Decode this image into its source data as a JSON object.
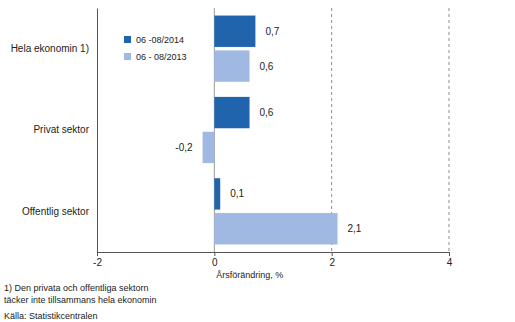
{
  "chart_data": {
    "type": "bar",
    "orientation": "horizontal",
    "categories": [
      "Hela ekonomin 1)",
      "Privat sektor",
      "Offentlig sektor"
    ],
    "series": [
      {
        "name": "06 -08/2014",
        "color": "#1f64ad",
        "values": [
          0.7,
          0.6,
          0.1
        ],
        "value_labels": [
          "0,7",
          "0,6",
          "0,1"
        ]
      },
      {
        "name": "06 - 08/2013",
        "color": "#9fb9e2",
        "values": [
          0.6,
          -0.2,
          2.1
        ],
        "value_labels": [
          "0,6",
          "-0,2",
          "2,1"
        ]
      }
    ],
    "x_label": "Årsförändring, %",
    "xlim": [
      -2,
      4
    ],
    "xticks": [
      -2,
      0,
      2,
      4
    ],
    "grid": true,
    "legend": "upper left",
    "data_labels": true,
    "annotations": [
      "1) Den privata och offentliga sektorn",
      "täcker inte tillsammans hela ekonomin",
      "Källa: Statistikcentralen"
    ]
  }
}
